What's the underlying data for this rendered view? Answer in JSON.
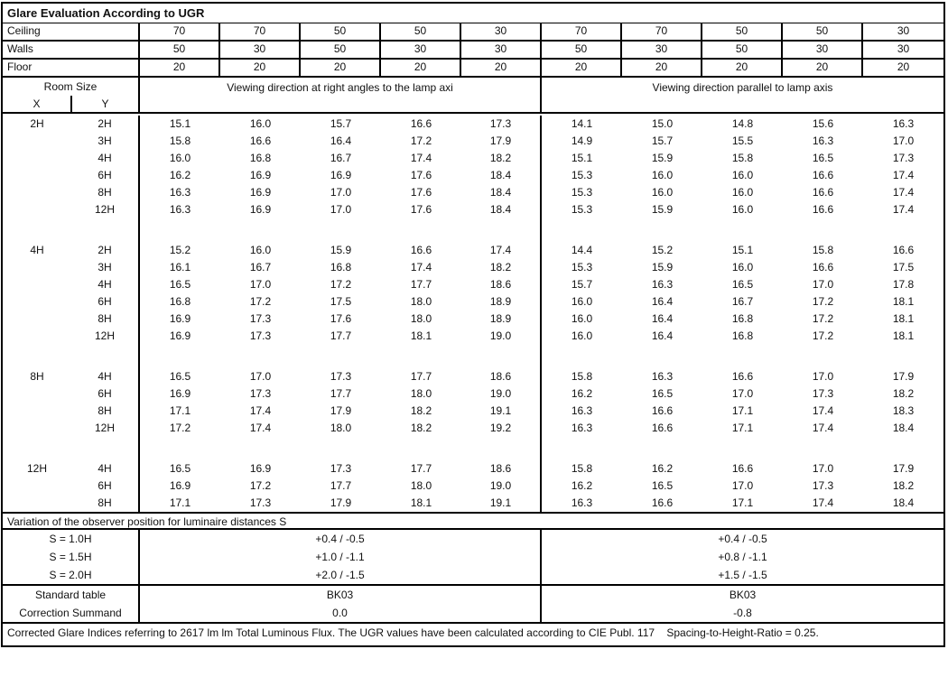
{
  "title": "Glare Evaluation According to UGR",
  "surfaces": {
    "rows": [
      {
        "label": "Ceiling",
        "values": [
          "70",
          "70",
          "50",
          "50",
          "30",
          "70",
          "70",
          "50",
          "50",
          "30"
        ]
      },
      {
        "label": "Walls",
        "values": [
          "50",
          "30",
          "50",
          "30",
          "30",
          "50",
          "30",
          "50",
          "30",
          "30"
        ]
      },
      {
        "label": "Floor",
        "values": [
          "20",
          "20",
          "20",
          "20",
          "20",
          "20",
          "20",
          "20",
          "20",
          "20"
        ]
      }
    ]
  },
  "header": {
    "room_size": "Room Size",
    "x": "X",
    "y": "Y",
    "left_section": "Viewing direction at right angles to the lamp axi",
    "right_section": "Viewing direction parallel to lamp axis"
  },
  "ugr_blocks": [
    {
      "x": "2H",
      "rows": [
        {
          "y": "2H",
          "values": [
            "15.1",
            "16.0",
            "15.7",
            "16.6",
            "17.3",
            "14.1",
            "15.0",
            "14.8",
            "15.6",
            "16.3"
          ]
        },
        {
          "y": "3H",
          "values": [
            "15.8",
            "16.6",
            "16.4",
            "17.2",
            "17.9",
            "14.9",
            "15.7",
            "15.5",
            "16.3",
            "17.0"
          ]
        },
        {
          "y": "4H",
          "values": [
            "16.0",
            "16.8",
            "16.7",
            "17.4",
            "18.2",
            "15.1",
            "15.9",
            "15.8",
            "16.5",
            "17.3"
          ]
        },
        {
          "y": "6H",
          "values": [
            "16.2",
            "16.9",
            "16.9",
            "17.6",
            "18.4",
            "15.3",
            "16.0",
            "16.0",
            "16.6",
            "17.4"
          ]
        },
        {
          "y": "8H",
          "values": [
            "16.3",
            "16.9",
            "17.0",
            "17.6",
            "18.4",
            "15.3",
            "16.0",
            "16.0",
            "16.6",
            "17.4"
          ]
        },
        {
          "y": "12H",
          "values": [
            "16.3",
            "16.9",
            "17.0",
            "17.6",
            "18.4",
            "15.3",
            "15.9",
            "16.0",
            "16.6",
            "17.4"
          ]
        }
      ]
    },
    {
      "x": "4H",
      "rows": [
        {
          "y": "2H",
          "values": [
            "15.2",
            "16.0",
            "15.9",
            "16.6",
            "17.4",
            "14.4",
            "15.2",
            "15.1",
            "15.8",
            "16.6"
          ]
        },
        {
          "y": "3H",
          "values": [
            "16.1",
            "16.7",
            "16.8",
            "17.4",
            "18.2",
            "15.3",
            "15.9",
            "16.0",
            "16.6",
            "17.5"
          ]
        },
        {
          "y": "4H",
          "values": [
            "16.5",
            "17.0",
            "17.2",
            "17.7",
            "18.6",
            "15.7",
            "16.3",
            "16.5",
            "17.0",
            "17.8"
          ]
        },
        {
          "y": "6H",
          "values": [
            "16.8",
            "17.2",
            "17.5",
            "18.0",
            "18.9",
            "16.0",
            "16.4",
            "16.7",
            "17.2",
            "18.1"
          ]
        },
        {
          "y": "8H",
          "values": [
            "16.9",
            "17.3",
            "17.6",
            "18.0",
            "18.9",
            "16.0",
            "16.4",
            "16.8",
            "17.2",
            "18.1"
          ]
        },
        {
          "y": "12H",
          "values": [
            "16.9",
            "17.3",
            "17.7",
            "18.1",
            "19.0",
            "16.0",
            "16.4",
            "16.8",
            "17.2",
            "18.1"
          ]
        }
      ]
    },
    {
      "x": "8H",
      "rows": [
        {
          "y": "4H",
          "values": [
            "16.5",
            "17.0",
            "17.3",
            "17.7",
            "18.6",
            "15.8",
            "16.3",
            "16.6",
            "17.0",
            "17.9"
          ]
        },
        {
          "y": "6H",
          "values": [
            "16.9",
            "17.3",
            "17.7",
            "18.0",
            "19.0",
            "16.2",
            "16.5",
            "17.0",
            "17.3",
            "18.2"
          ]
        },
        {
          "y": "8H",
          "values": [
            "17.1",
            "17.4",
            "17.9",
            "18.2",
            "19.1",
            "16.3",
            "16.6",
            "17.1",
            "17.4",
            "18.3"
          ]
        },
        {
          "y": "12H",
          "values": [
            "17.2",
            "17.4",
            "18.0",
            "18.2",
            "19.2",
            "16.3",
            "16.6",
            "17.1",
            "17.4",
            "18.4"
          ]
        }
      ]
    },
    {
      "x": "12H",
      "rows": [
        {
          "y": "4H",
          "values": [
            "16.5",
            "16.9",
            "17.3",
            "17.7",
            "18.6",
            "15.8",
            "16.2",
            "16.6",
            "17.0",
            "17.9"
          ]
        },
        {
          "y": "6H",
          "values": [
            "16.9",
            "17.2",
            "17.7",
            "18.0",
            "19.0",
            "16.2",
            "16.5",
            "17.0",
            "17.3",
            "18.2"
          ]
        },
        {
          "y": "8H",
          "values": [
            "17.1",
            "17.3",
            "17.9",
            "18.1",
            "19.1",
            "16.3",
            "16.6",
            "17.1",
            "17.4",
            "18.4"
          ]
        }
      ]
    }
  ],
  "variation": {
    "header": "Variation of the observer position for luminaire distances S",
    "rows": [
      {
        "label": "S = 1.0H",
        "left": "+0.4 / -0.5",
        "right": "+0.4 / -0.5"
      },
      {
        "label": "S = 1.5H",
        "left": "+1.0 / -1.1",
        "right": "+0.8 / -1.1"
      },
      {
        "label": "S = 2.0H",
        "left": "+2.0 / -1.5",
        "right": "+1.5 / -1.5"
      }
    ]
  },
  "summary": {
    "rows": [
      {
        "label": "Standard table",
        "left": "BK03",
        "right": "BK03"
      },
      {
        "label": "Correction Summand",
        "left": "0.0",
        "right": "-0.8"
      }
    ]
  },
  "footer": "Corrected Glare Indices referring to 2617 lm lm Total Luminous Flux. The UGR values have been calculated according to CIE Publ. 117    Spacing-to-Height-Ratio = 0.25."
}
